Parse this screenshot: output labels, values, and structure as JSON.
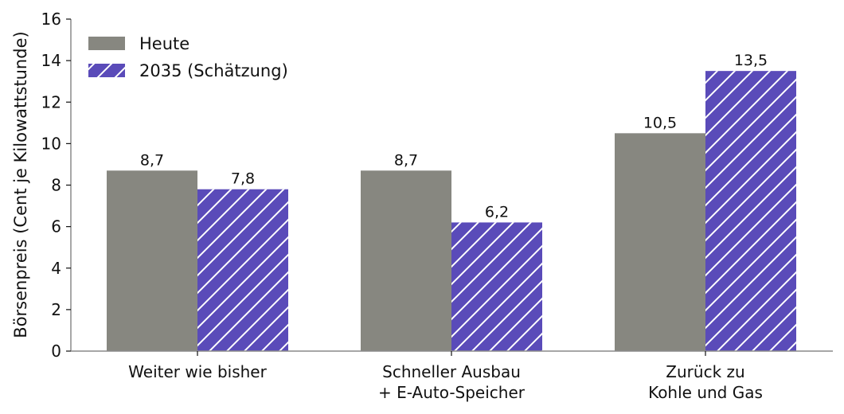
{
  "colors": {
    "today": "#878780",
    "future": "#5a4bb9",
    "hatch": "#ffffff",
    "axis": "#8a8a8a"
  },
  "chart_data": {
    "type": "bar",
    "categories": [
      [
        "Weiter wie bisher"
      ],
      [
        "Schneller Ausbau",
        "+ E-Auto-Speicher"
      ],
      [
        "Zurück zu",
        "Kohle und Gas"
      ]
    ],
    "series": [
      {
        "name": "Heute",
        "values": [
          8.7,
          8.7,
          10.5
        ],
        "labels": [
          "8,7",
          "8,7",
          "10,5"
        ]
      },
      {
        "name": "2035 (Schätzung)",
        "values": [
          7.8,
          6.2,
          13.5
        ],
        "labels": [
          "7,8",
          "6,2",
          "13,5"
        ]
      }
    ],
    "ylabel": "Börsenpreis (Cent je Kilowattstunde)",
    "xlabel": "",
    "ylim": [
      0,
      16
    ],
    "yticks": [
      0,
      2,
      4,
      6,
      8,
      10,
      12,
      14,
      16
    ],
    "legend_position": "top-left",
    "grid": false
  }
}
